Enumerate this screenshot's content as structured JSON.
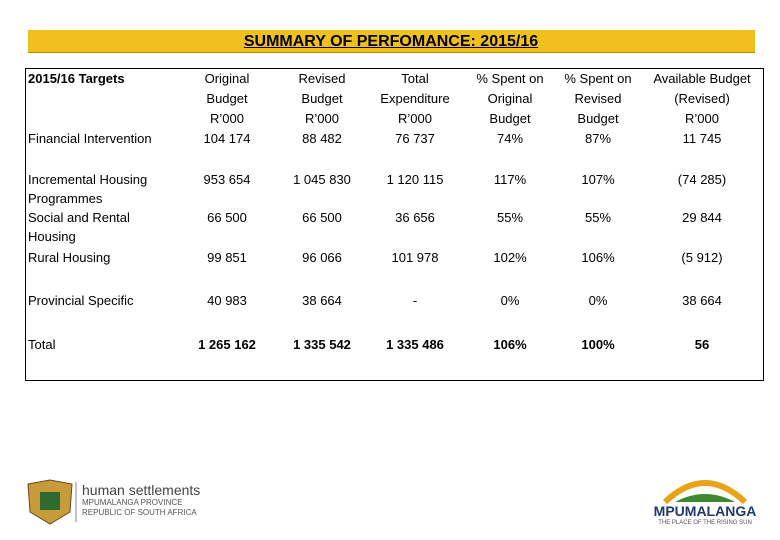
{
  "title": "SUMMARY OF PERFOMANCE: 2015/16",
  "table": {
    "header": [
      [
        "2015/16 Targets"
      ],
      [
        "Original",
        "Budget",
        "R’000"
      ],
      [
        "Revised",
        "Budget",
        "R’000"
      ],
      [
        "Total",
        "Expenditure",
        "R’000"
      ],
      [
        "% Spent on",
        "Original",
        "Budget"
      ],
      [
        "% Spent on",
        "Revised",
        "Budget"
      ],
      [
        "Available Budget",
        "(Revised)",
        "R’000"
      ]
    ],
    "rows": [
      [
        "Financial Intervention",
        "104 174",
        "88 482",
        "76 737",
        "74%",
        "87%",
        "11 745"
      ],
      [
        "Incremental Housing Programmes",
        "953 654",
        "1 045 830",
        "1 120 115",
        "117%",
        "107%",
        "(74 285)"
      ],
      [
        "Social and Rental Housing",
        "66 500",
        "66 500",
        "36 656",
        "55%",
        "55%",
        "29 844"
      ],
      [
        "Rural Housing",
        "99 851",
        "96 066",
        "101 978",
        "102%",
        "106%",
        "(5 912)"
      ],
      [
        "Provincial Specific",
        "40 983",
        "38 664",
        "-",
        "0%",
        "0%",
        "38 664"
      ],
      [
        "Total",
        "1 265 162",
        "1 335 542",
        "1 335 486",
        "106%",
        "100%",
        "56"
      ]
    ]
  },
  "footer": {
    "left": [
      "human settlements",
      "MPUMALANGA PROVINCE",
      "REPUBLIC OF SOUTH AFRICA"
    ],
    "right": [
      "MPUMALANGA",
      "THE PLACE OF THE RISING SUN"
    ]
  }
}
